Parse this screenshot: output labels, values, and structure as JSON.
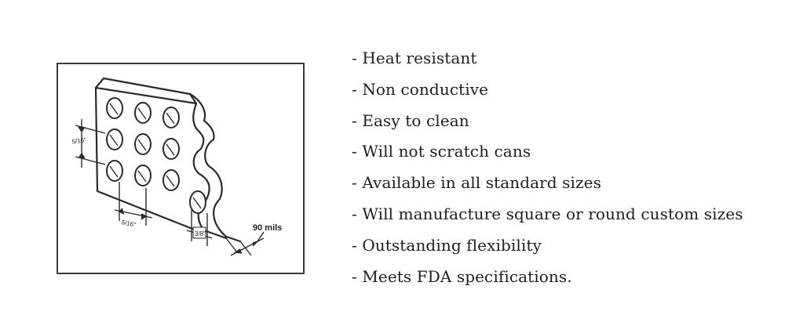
{
  "drawing": {
    "thickness_label": "90 mils",
    "hole_spacing_vertical": "5/16\"",
    "hole_spacing_horizontal": "5/16\"",
    "hole_diameter": "3/8\""
  },
  "features": [
    "- Heat resistant",
    "- Non conductive",
    "- Easy to clean",
    "- Will not scratch cans",
    "- Available in all standard sizes",
    "- Will manufacture square or round custom sizes",
    "- Outstanding flexibility",
    "- Meets FDA specifications."
  ]
}
